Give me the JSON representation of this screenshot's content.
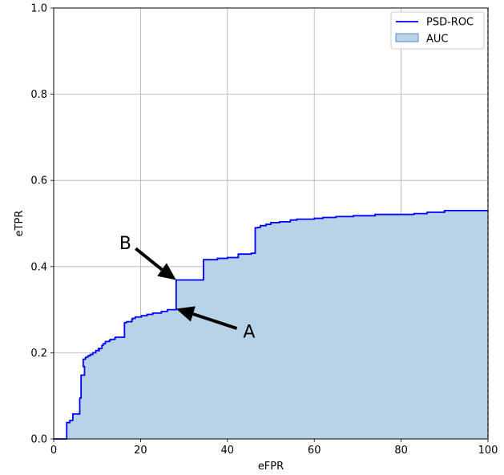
{
  "chart_data": {
    "type": "area",
    "xlabel": "eFPR",
    "ylabel": "eTPR",
    "xlim": [
      0,
      100
    ],
    "ylim": [
      0,
      1.0
    ],
    "x_ticks": [
      "0",
      "20",
      "40",
      "60",
      "80",
      "100"
    ],
    "y_ticks": [
      "0.0",
      "0.2",
      "0.4",
      "0.6",
      "0.8",
      "1.0"
    ],
    "grid": true,
    "legend_position": "top-right",
    "colors": {
      "line": "#0000ff",
      "fill": "#b8d3e8",
      "fill_edge": "#5b8fc7"
    },
    "series": [
      {
        "name": "PSD-ROC",
        "step": true,
        "x": [
          0,
          3,
          3,
          3.7,
          4.4,
          4.7,
          6,
          5.9,
          6.3,
          7.1,
          6.8,
          7.3,
          7.4,
          7.9,
          8.4,
          9,
          9.7,
          10.5,
          10.3,
          11.1,
          11.4,
          11.9,
          12.8,
          13,
          14,
          14.2,
          15.4,
          16.3,
          16.8,
          18,
          18.2,
          18.8,
          20.2,
          21.5,
          22.8,
          24.8,
          26.2,
          28.2,
          28.2,
          34.5,
          34.5,
          37.7,
          40,
          42.5,
          45.5,
          46.4,
          46.4,
          47,
          47.6,
          48.9,
          50,
          52,
          54.5,
          56,
          60,
          62,
          65,
          69,
          74,
          83,
          86,
          90,
          100
        ],
        "y": [
          0,
          0,
          0.038,
          0.043,
          0.058,
          0.058,
          0.095,
          0.095,
          0.148,
          0.168,
          0.185,
          0.188,
          0.19,
          0.193,
          0.196,
          0.2,
          0.205,
          0.209,
          0.21,
          0.217,
          0.221,
          0.226,
          0.228,
          0.231,
          0.233,
          0.236,
          0.236,
          0.27,
          0.272,
          0.278,
          0.28,
          0.283,
          0.286,
          0.289,
          0.292,
          0.296,
          0.3,
          0.302,
          0.369,
          0.369,
          0.416,
          0.419,
          0.421,
          0.429,
          0.431,
          0.474,
          0.49,
          0.491,
          0.495,
          0.498,
          0.502,
          0.504,
          0.508,
          0.51,
          0.512,
          0.514,
          0.516,
          0.518,
          0.521,
          0.523,
          0.526,
          0.53,
          0.53
        ]
      }
    ],
    "legend": [
      {
        "label": "PSD-ROC",
        "kind": "line"
      },
      {
        "label": "AUC",
        "kind": "patch"
      }
    ],
    "annotations": [
      {
        "text": "A",
        "point": [
          28.2,
          0.302
        ],
        "label_at": [
          45,
          0.25
        ]
      },
      {
        "text": "B",
        "point": [
          28.2,
          0.369
        ],
        "label_at": [
          16.5,
          0.455
        ]
      }
    ]
  }
}
